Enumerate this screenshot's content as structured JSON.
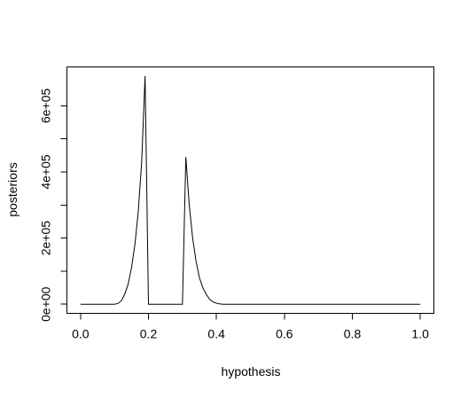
{
  "chart_data": {
    "type": "line",
    "x_label": "hypothesis",
    "y_label": "posteriors",
    "x": [
      0,
      0.1,
      0.11,
      0.12,
      0.13,
      0.14,
      0.15,
      0.16,
      0.17,
      0.18,
      0.19,
      0.2,
      0.3,
      0.31,
      0.32,
      0.33,
      0.34,
      0.35,
      0.36,
      0.37,
      0.38,
      0.39,
      0.4,
      0.41,
      0.42,
      1.0
    ],
    "series": [
      {
        "color": "#000000",
        "values": [
          0,
          0,
          2000,
          10000,
          30000,
          60000,
          110000,
          180000,
          280000,
          430000,
          690000,
          0,
          0,
          445000,
          300000,
          200000,
          130000,
          80000,
          50000,
          30000,
          15000,
          7000,
          3000,
          1000,
          0,
          0
        ]
      }
    ],
    "xlim": [
      -0.04,
      1.04
    ],
    "ylim": [
      -27600,
      717600
    ],
    "xticks": [
      {
        "value": 0,
        "label": "0.0"
      },
      0.2,
      0.4,
      0.6,
      0.8,
      {
        "value": 1,
        "label": "1.0"
      }
    ],
    "yticks": [
      {
        "value": 0,
        "label": "0e+00"
      },
      {
        "value": 200000,
        "label": "2e+05"
      },
      {
        "value": 400000,
        "label": "4e+05"
      },
      {
        "value": 600000,
        "label": "6e+05"
      }
    ],
    "yminor_ticks": [
      100000,
      300000,
      500000
    ]
  }
}
